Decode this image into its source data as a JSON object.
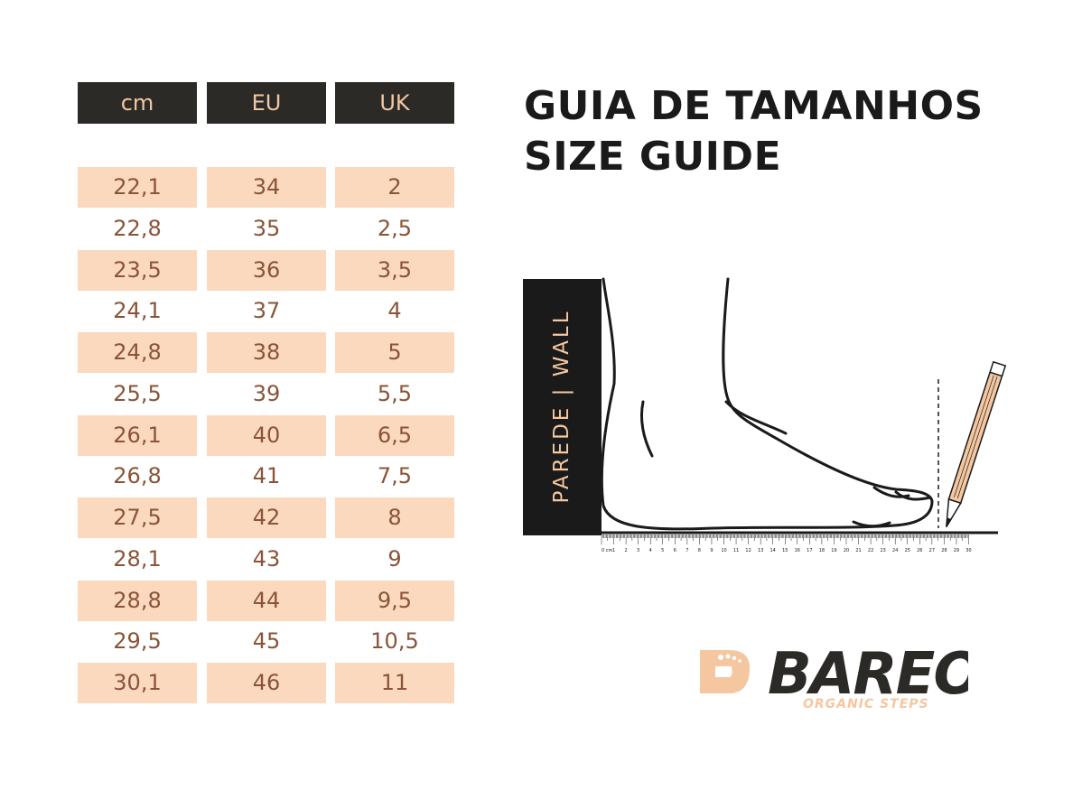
{
  "title": {
    "line1": "GUIA DE TAMANHOS",
    "line2": "SIZE GUIDE"
  },
  "table": {
    "headers": [
      "cm",
      "EU",
      "UK"
    ],
    "rows": [
      [
        "22,1",
        "34",
        "2"
      ],
      [
        "22,8",
        "35",
        "2,5"
      ],
      [
        "23,5",
        "36",
        "3,5"
      ],
      [
        "24,1",
        "37",
        "4"
      ],
      [
        "24,8",
        "38",
        "5"
      ],
      [
        "25,5",
        "39",
        "5,5"
      ],
      [
        "26,1",
        "40",
        "6,5"
      ],
      [
        "26,8",
        "41",
        "7,5"
      ],
      [
        "27,5",
        "42",
        "8"
      ],
      [
        "28,1",
        "43",
        "9"
      ],
      [
        "28,8",
        "44",
        "9,5"
      ],
      [
        "29,5",
        "45",
        "10,5"
      ],
      [
        "30,1",
        "46",
        "11"
      ]
    ]
  },
  "diagram": {
    "wall_label": "PAREDE  | WALL",
    "ruler_labels": [
      "0 cm",
      "1",
      "2",
      "3",
      "4",
      "5",
      "6",
      "7",
      "8",
      "9",
      "10",
      "11",
      "12",
      "13",
      "14",
      "15",
      "16",
      "17",
      "18",
      "19",
      "20",
      "21",
      "22",
      "23",
      "24",
      "25",
      "26",
      "27",
      "28",
      "29",
      "30"
    ]
  },
  "logo": {
    "brand": "BAREO",
    "tagline": "ORGANIC STEPS"
  },
  "colors": {
    "header_bg": "#2b2a27",
    "header_text": "#f4c7a0",
    "row_shade": "#fbd9bf",
    "cell_text": "#8a5438",
    "logo_accent": "#f4c7a0"
  }
}
